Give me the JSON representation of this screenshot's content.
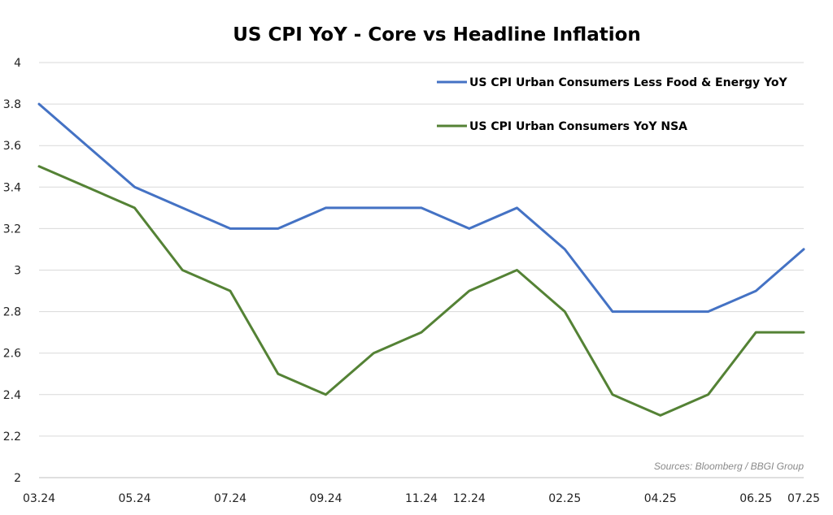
{
  "chart_data": {
    "type": "line",
    "title": "US CPI YoY - Core vs Headline Inflation",
    "xlabel": "",
    "ylabel": "",
    "ylim": [
      2,
      4
    ],
    "yticks": [
      "2",
      "2.2",
      "2.4",
      "2.6",
      "2.8",
      "3",
      "3.2",
      "3.4",
      "3.6",
      "3.8",
      "4"
    ],
    "x": [
      "03.24",
      "04.24",
      "05.24",
      "06.24",
      "07.24",
      "08.24",
      "09.24",
      "10.24",
      "11.24",
      "12.24",
      "01.25",
      "02.25",
      "03.25",
      "04.25",
      "05.25",
      "06.25",
      "07.25"
    ],
    "xtick_labels": [
      "03.24",
      "05.24",
      "07.24",
      "09.24",
      "11.24",
      "12.24",
      "02.25",
      "04.25",
      "06.25",
      "07.25"
    ],
    "xtick_positions": [
      "03.24",
      "05.24",
      "07.24",
      "09.24",
      "11.24",
      "12.24",
      "02.25",
      "04.25",
      "06.25",
      "07.25"
    ],
    "grid": true,
    "legend_position": "top-right",
    "series": [
      {
        "name": "US CPI Urban Consumers Less Food & Energy YoY",
        "color": "#4472C4",
        "values": [
          3.8,
          3.6,
          3.4,
          3.3,
          3.2,
          3.2,
          3.3,
          3.3,
          3.3,
          3.2,
          3.3,
          3.1,
          2.8,
          2.8,
          2.8,
          2.9,
          3.1
        ]
      },
      {
        "name": "US CPI Urban Consumers YoY NSA",
        "color": "#548235",
        "values": [
          3.5,
          3.4,
          3.3,
          3.0,
          2.9,
          2.5,
          2.4,
          2.6,
          2.7,
          2.9,
          3.0,
          2.8,
          2.4,
          2.3,
          2.4,
          2.7,
          2.7
        ]
      }
    ],
    "source": "Sources: Bloomberg / BBGI Group"
  }
}
